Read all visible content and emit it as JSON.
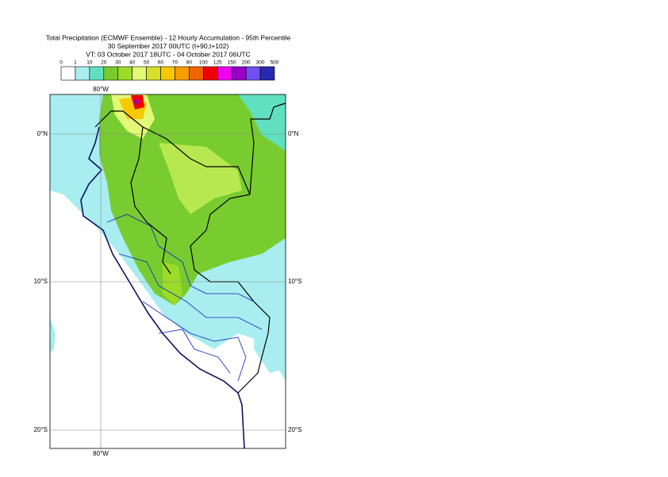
{
  "title": {
    "lines": [
      "Total Precipitation (ECMWF Ensemble) - 12 Hourly Accumulation - 95th Percentile",
      "30 September 2017 00UTC (t+90,t+102)",
      "VT: 03 October 2017 18UTC - 04 October 2017 06UTC"
    ]
  },
  "legend": {
    "labels": [
      0,
      1,
      10,
      20,
      30,
      40,
      50,
      60,
      70,
      80,
      100,
      125,
      150,
      200,
      300,
      500
    ],
    "colors": [
      "#ffffff",
      "#a8eef0",
      "#60e0c0",
      "#78cc30",
      "#9cdc28",
      "#e4f878",
      "#d8e02c",
      "#f8c800",
      "#f89c00",
      "#f06400",
      "#f00000",
      "#f000f0",
      "#9800c8",
      "#7050f0",
      "#2828b0",
      "#101060"
    ]
  },
  "map": {
    "lon_labels_top": [
      "80°W"
    ],
    "lon_labels_bottom": [
      "80°W"
    ],
    "lat_labels_left": [
      "0°N",
      "10°S",
      "20°S"
    ],
    "lat_labels_right": [
      "0°N",
      "10°S",
      "20°S"
    ]
  }
}
